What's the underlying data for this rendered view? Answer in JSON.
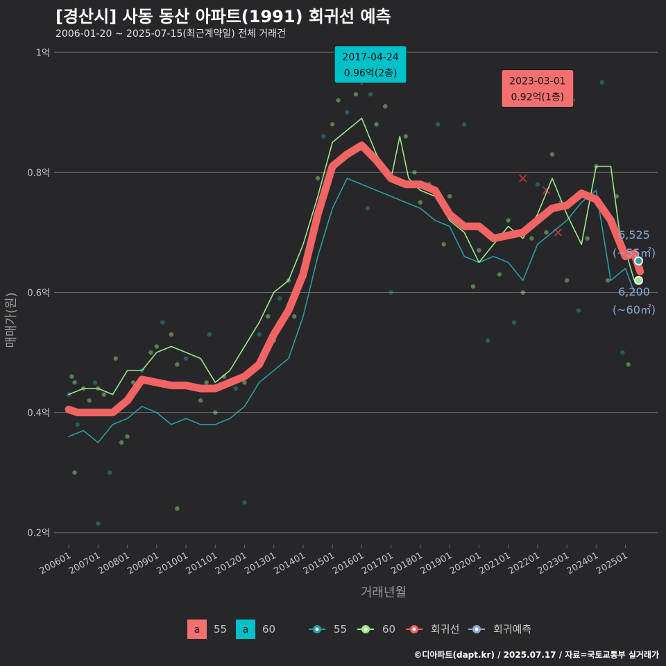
{
  "title": "[경산시] 사동 동산 아파트(1991) 회귀선 예측",
  "subtitle": "2006-01-20 ~ 2025-07-15(최근계약일) 전체 거래건",
  "credit": "©디아파트(dapt.kr) / 2025.07.17 / 자료=국토교통부 실거래가",
  "colors": {
    "background": "#27272a",
    "grid": "#6a6a6a",
    "s55": "#2a9da3",
    "s60": "#9be88a",
    "regression": "#f06464",
    "forecast": "#8fa6d6",
    "label_55": "#00c0c8",
    "label_60": "#f47070"
  },
  "chart_data": {
    "type": "line",
    "xlabel": "거래년월",
    "ylabel": "매매가(원)",
    "x_ticks": [
      "200601",
      "200701",
      "200801",
      "200901",
      "201001",
      "201101",
      "201201",
      "201301",
      "201401",
      "201501",
      "201601",
      "201701",
      "201801",
      "201901",
      "202001",
      "202101",
      "202201",
      "202301",
      "202401",
      "202501"
    ],
    "y_ticks": [
      "0.2억",
      "0.4억",
      "0.6억",
      "0.8억",
      "1억"
    ],
    "y_tick_values": [
      0.2,
      0.4,
      0.6,
      0.8,
      1.0
    ],
    "ylim": [
      0.18,
      1.02
    ],
    "xlim": [
      2005.5,
      2026.1
    ],
    "series": [
      {
        "name": "55",
        "points": [
          [
            2006.0,
            0.36
          ],
          [
            2006.5,
            0.37
          ],
          [
            2007.0,
            0.35
          ],
          [
            2007.5,
            0.38
          ],
          [
            2008.0,
            0.39
          ],
          [
            2008.5,
            0.41
          ],
          [
            2009.0,
            0.4
          ],
          [
            2009.5,
            0.38
          ],
          [
            2010.0,
            0.39
          ],
          [
            2010.5,
            0.38
          ],
          [
            2011.0,
            0.38
          ],
          [
            2011.5,
            0.39
          ],
          [
            2012.0,
            0.41
          ],
          [
            2012.5,
            0.45
          ],
          [
            2013.0,
            0.47
          ],
          [
            2013.5,
            0.49
          ],
          [
            2014.0,
            0.56
          ],
          [
            2014.5,
            0.66
          ],
          [
            2015.0,
            0.74
          ],
          [
            2015.5,
            0.79
          ],
          [
            2016.0,
            0.78
          ],
          [
            2016.5,
            0.77
          ],
          [
            2017.0,
            0.76
          ],
          [
            2017.5,
            0.75
          ],
          [
            2018.0,
            0.74
          ],
          [
            2018.5,
            0.72
          ],
          [
            2019.0,
            0.71
          ],
          [
            2019.5,
            0.66
          ],
          [
            2020.0,
            0.65
          ],
          [
            2020.5,
            0.66
          ],
          [
            2021.0,
            0.65
          ],
          [
            2021.5,
            0.62
          ],
          [
            2022.0,
            0.68
          ],
          [
            2022.5,
            0.7
          ],
          [
            2023.0,
            0.72
          ],
          [
            2023.5,
            0.75
          ],
          [
            2024.0,
            0.77
          ],
          [
            2024.5,
            0.62
          ],
          [
            2025.0,
            0.64
          ],
          [
            2025.3,
            0.6
          ]
        ]
      },
      {
        "name": "60",
        "points": [
          [
            2006.0,
            0.43
          ],
          [
            2006.5,
            0.44
          ],
          [
            2007.0,
            0.44
          ],
          [
            2007.5,
            0.43
          ],
          [
            2008.0,
            0.47
          ],
          [
            2008.5,
            0.47
          ],
          [
            2009.0,
            0.5
          ],
          [
            2009.5,
            0.51
          ],
          [
            2010.0,
            0.5
          ],
          [
            2010.5,
            0.49
          ],
          [
            2011.0,
            0.45
          ],
          [
            2011.5,
            0.47
          ],
          [
            2012.0,
            0.51
          ],
          [
            2012.5,
            0.55
          ],
          [
            2013.0,
            0.6
          ],
          [
            2013.5,
            0.62
          ],
          [
            2014.0,
            0.68
          ],
          [
            2014.5,
            0.76
          ],
          [
            2015.0,
            0.85
          ],
          [
            2015.5,
            0.87
          ],
          [
            2016.0,
            0.89
          ],
          [
            2016.5,
            0.83
          ],
          [
            2017.0,
            0.79
          ],
          [
            2017.3,
            0.86
          ],
          [
            2017.6,
            0.79
          ],
          [
            2018.0,
            0.77
          ],
          [
            2018.5,
            0.76
          ],
          [
            2019.0,
            0.72
          ],
          [
            2019.5,
            0.7
          ],
          [
            2020.0,
            0.65
          ],
          [
            2020.5,
            0.68
          ],
          [
            2021.0,
            0.71
          ],
          [
            2021.5,
            0.69
          ],
          [
            2022.0,
            0.73
          ],
          [
            2022.5,
            0.79
          ],
          [
            2023.0,
            0.73
          ],
          [
            2023.5,
            0.68
          ],
          [
            2024.0,
            0.81
          ],
          [
            2024.5,
            0.81
          ],
          [
            2024.8,
            0.7
          ],
          [
            2025.0,
            0.67
          ],
          [
            2025.3,
            0.62
          ]
        ]
      },
      {
        "name": "회귀선",
        "points": [
          [
            2006.0,
            0.405
          ],
          [
            2006.3,
            0.4
          ],
          [
            2007.0,
            0.4
          ],
          [
            2007.5,
            0.4
          ],
          [
            2008.0,
            0.42
          ],
          [
            2008.5,
            0.455
          ],
          [
            2009.0,
            0.45
          ],
          [
            2009.5,
            0.445
          ],
          [
            2010.0,
            0.445
          ],
          [
            2010.5,
            0.44
          ],
          [
            2011.0,
            0.44
          ],
          [
            2011.5,
            0.45
          ],
          [
            2012.0,
            0.46
          ],
          [
            2012.5,
            0.48
          ],
          [
            2013.0,
            0.53
          ],
          [
            2013.5,
            0.57
          ],
          [
            2014.0,
            0.63
          ],
          [
            2014.5,
            0.73
          ],
          [
            2015.0,
            0.81
          ],
          [
            2015.5,
            0.83
          ],
          [
            2016.0,
            0.845
          ],
          [
            2016.5,
            0.82
          ],
          [
            2017.0,
            0.79
          ],
          [
            2017.5,
            0.78
          ],
          [
            2018.0,
            0.78
          ],
          [
            2018.5,
            0.77
          ],
          [
            2019.0,
            0.73
          ],
          [
            2019.5,
            0.71
          ],
          [
            2020.0,
            0.71
          ],
          [
            2020.5,
            0.69
          ],
          [
            2021.0,
            0.695
          ],
          [
            2021.5,
            0.7
          ],
          [
            2022.0,
            0.72
          ],
          [
            2022.5,
            0.74
          ],
          [
            2023.0,
            0.745
          ],
          [
            2023.5,
            0.765
          ],
          [
            2024.0,
            0.755
          ],
          [
            2024.5,
            0.72
          ],
          [
            2025.0,
            0.66
          ],
          [
            2025.3,
            0.665
          ],
          [
            2025.5,
            0.635
          ]
        ]
      },
      {
        "name": "회귀예측",
        "points": [
          [
            2025.5,
            0.6525
          ],
          [
            2025.5,
            0.62
          ]
        ]
      }
    ],
    "scatter_points": [
      [
        2006.0,
        0.43
      ],
      [
        2006.1,
        0.46
      ],
      [
        2006.2,
        0.45
      ],
      [
        2006.3,
        0.38
      ],
      [
        2006.5,
        0.44
      ],
      [
        2006.7,
        0.42
      ],
      [
        2006.9,
        0.45
      ],
      [
        2007.0,
        0.44
      ],
      [
        2007.2,
        0.43
      ],
      [
        2007.4,
        0.3
      ],
      [
        2007.6,
        0.49
      ],
      [
        2006.2,
        0.3
      ],
      [
        2007.0,
        0.215
      ],
      [
        2007.8,
        0.35
      ],
      [
        2008.2,
        0.45
      ],
      [
        2008.5,
        0.47
      ],
      [
        2008.8,
        0.5
      ],
      [
        2009.0,
        0.51
      ],
      [
        2009.2,
        0.55
      ],
      [
        2009.5,
        0.53
      ],
      [
        2009.7,
        0.48
      ],
      [
        2010.0,
        0.49
      ],
      [
        2010.2,
        0.44
      ],
      [
        2010.5,
        0.42
      ],
      [
        2010.8,
        0.53
      ],
      [
        2011.0,
        0.4
      ],
      [
        2011.3,
        0.46
      ],
      [
        2011.7,
        0.44
      ],
      [
        2012.0,
        0.45
      ],
      [
        2012.2,
        0.47
      ],
      [
        2012.5,
        0.53
      ],
      [
        2012.8,
        0.56
      ],
      [
        2013.0,
        0.52
      ],
      [
        2013.2,
        0.59
      ],
      [
        2013.5,
        0.62
      ],
      [
        2013.7,
        0.56
      ],
      [
        2014.0,
        0.64
      ],
      [
        2014.2,
        0.68
      ],
      [
        2014.5,
        0.79
      ],
      [
        2014.7,
        0.86
      ],
      [
        2015.0,
        0.88
      ],
      [
        2015.2,
        0.92
      ],
      [
        2015.5,
        0.9
      ],
      [
        2015.8,
        0.93
      ],
      [
        2016.0,
        0.95
      ],
      [
        2016.3,
        0.93
      ],
      [
        2016.5,
        0.88
      ],
      [
        2016.8,
        0.91
      ],
      [
        2017.2,
        0.96
      ],
      [
        2017.5,
        0.86
      ],
      [
        2017.8,
        0.8
      ],
      [
        2017.0,
        0.6
      ],
      [
        2018.0,
        0.75
      ],
      [
        2018.3,
        0.78
      ],
      [
        2018.6,
        0.88
      ],
      [
        2019.0,
        0.76
      ],
      [
        2019.3,
        0.72
      ],
      [
        2019.5,
        0.88
      ],
      [
        2019.8,
        0.61
      ],
      [
        2020.0,
        0.67
      ],
      [
        2020.3,
        0.52
      ],
      [
        2020.7,
        0.63
      ],
      [
        2021.0,
        0.72
      ],
      [
        2021.2,
        0.55
      ],
      [
        2021.5,
        0.6
      ],
      [
        2021.8,
        0.69
      ],
      [
        2022.0,
        0.78
      ],
      [
        2022.3,
        0.7
      ],
      [
        2022.5,
        0.83
      ],
      [
        2022.8,
        0.75
      ],
      [
        2023.0,
        0.62
      ],
      [
        2023.2,
        0.92
      ],
      [
        2023.4,
        0.57
      ],
      [
        2023.7,
        0.69
      ],
      [
        2024.0,
        0.81
      ],
      [
        2024.2,
        0.95
      ],
      [
        2024.4,
        0.62
      ],
      [
        2024.7,
        0.76
      ],
      [
        2024.9,
        0.5
      ],
      [
        2025.1,
        0.48
      ],
      [
        2009.7,
        0.24
      ],
      [
        2012.0,
        0.25
      ],
      [
        2010.7,
        0.45
      ],
      [
        2008.0,
        0.36
      ],
      [
        2016.2,
        0.74
      ],
      [
        2018.8,
        0.68
      ]
    ],
    "x_marks": [
      [
        2021.5,
        0.79
      ],
      [
        2022.3,
        0.77
      ],
      [
        2022.7,
        0.7
      ]
    ],
    "callouts": [
      {
        "date": "2017-04-24",
        "value": "0.96억(2층)",
        "x": 2016.3,
        "y": 0.96,
        "color_key": "label_55"
      },
      {
        "date": "2023-03-01",
        "value": "0.92억(1층)",
        "x": 2022.0,
        "y": 0.92,
        "color_key": "label_60"
      }
    ],
    "end_labels": [
      {
        "value": "6,525",
        "area": "(~55㎡)",
        "y": 0.6525
      },
      {
        "value": "6,200",
        "area": "(~60㎡)",
        "y": 0.62
      }
    ],
    "legend": {
      "placement": "bottom",
      "label_keys": [
        "55",
        "60"
      ],
      "series_keys": [
        "55",
        "60",
        "회귀선",
        "회귀예측"
      ]
    }
  }
}
